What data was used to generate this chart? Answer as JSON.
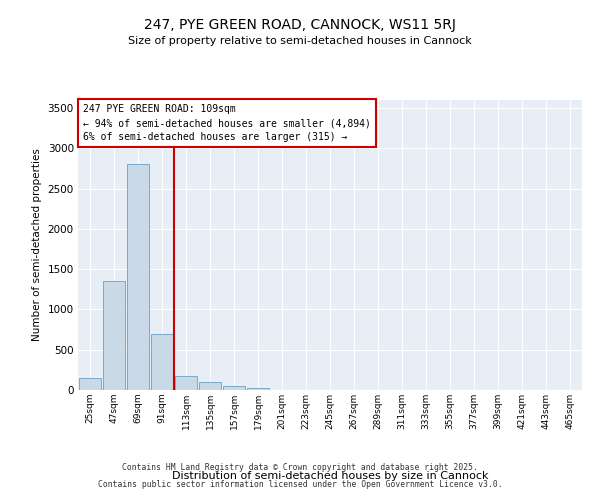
{
  "title": "247, PYE GREEN ROAD, CANNOCK, WS11 5RJ",
  "subtitle": "Size of property relative to semi-detached houses in Cannock",
  "xlabel": "Distribution of semi-detached houses by size in Cannock",
  "ylabel": "Number of semi-detached properties",
  "footer_line1": "Contains HM Land Registry data © Crown copyright and database right 2025.",
  "footer_line2": "Contains public sector information licensed under the Open Government Licence v3.0.",
  "annotation_line1": "247 PYE GREEN ROAD: 109sqm",
  "annotation_line2": "← 94% of semi-detached houses are smaller (4,894)",
  "annotation_line3": "6% of semi-detached houses are larger (315) →",
  "bar_color": "#c9d9e8",
  "bar_edge_color": "#7aaac8",
  "vline_color": "#cc0000",
  "background_color": "#e8eef5",
  "categories": [
    "25sqm",
    "47sqm",
    "69sqm",
    "91sqm",
    "113sqm",
    "135sqm",
    "157sqm",
    "179sqm",
    "201sqm",
    "223sqm",
    "245sqm",
    "267sqm",
    "289sqm",
    "311sqm",
    "333sqm",
    "355sqm",
    "377sqm",
    "399sqm",
    "421sqm",
    "443sqm",
    "465sqm"
  ],
  "values": [
    150,
    1350,
    2800,
    700,
    170,
    100,
    50,
    30,
    5,
    0,
    0,
    0,
    0,
    0,
    0,
    0,
    0,
    0,
    0,
    0,
    0
  ],
  "vline_x": 3.5,
  "ylim": [
    0,
    3600
  ],
  "yticks": [
    0,
    500,
    1000,
    1500,
    2000,
    2500,
    3000,
    3500
  ]
}
